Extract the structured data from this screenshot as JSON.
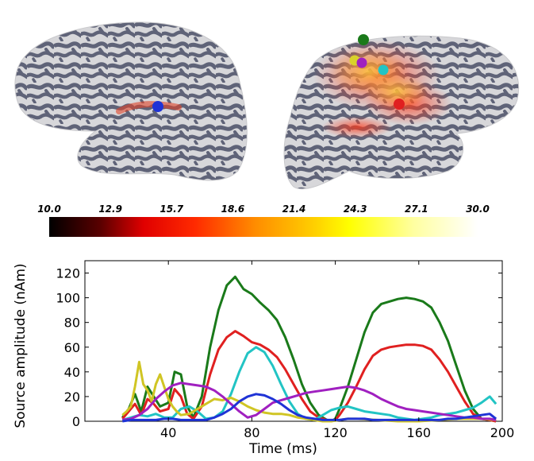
{
  "brain": {
    "views": [
      "left-hemisphere-lateral",
      "right-hemisphere-lateral"
    ],
    "dipoles": [
      {
        "name": "blue",
        "color": "#1f33d6",
        "hemisphere": "left"
      },
      {
        "name": "green",
        "color": "#1a7a1a",
        "hemisphere": "right"
      },
      {
        "name": "yellow",
        "color": "#d9d22a",
        "hemisphere": "right"
      },
      {
        "name": "magenta",
        "color": "#a020c0",
        "hemisphere": "right"
      },
      {
        "name": "cyan",
        "color": "#22c4c4",
        "hemisphere": "right"
      },
      {
        "name": "red",
        "color": "#e02020",
        "hemisphere": "right"
      }
    ]
  },
  "colorbar": {
    "ticks": [
      "10.0",
      "12.9",
      "15.7",
      "18.6",
      "21.4",
      "24.3",
      "27.1",
      "30.0"
    ],
    "colormap": "hot"
  },
  "chart_data": {
    "type": "line",
    "xlabel": "Time (ms)",
    "ylabel": "Source amplitude (nAm)",
    "xlim": [
      0,
      200
    ],
    "ylim": [
      0,
      130
    ],
    "xticks": [
      "40",
      "80",
      "120",
      "160",
      "200"
    ],
    "yticks": [
      "0",
      "20",
      "40",
      "60",
      "80",
      "100",
      "120"
    ],
    "grid": false,
    "legend": "none",
    "series": [
      {
        "color": "#1a7a1a",
        "x": [
          18,
          21,
          24,
          27,
          30,
          33,
          36,
          40,
          43,
          46,
          49,
          52,
          56,
          60,
          64,
          68,
          72,
          76,
          80,
          84,
          88,
          92,
          96,
          100,
          104,
          108,
          112,
          116,
          118,
          120,
          122,
          126,
          130,
          134,
          138,
          142,
          146,
          150,
          154,
          158,
          162,
          166,
          170,
          174,
          178,
          182,
          186,
          190,
          194,
          197
        ],
        "y": [
          3,
          10,
          22,
          8,
          28,
          20,
          12,
          15,
          40,
          38,
          12,
          3,
          20,
          60,
          90,
          110,
          117,
          107,
          103,
          96,
          90,
          82,
          68,
          50,
          30,
          15,
          5,
          1,
          0,
          2,
          10,
          28,
          50,
          72,
          88,
          95,
          97,
          99,
          100,
          99,
          97,
          92,
          80,
          65,
          45,
          25,
          10,
          2,
          1,
          0
        ]
      },
      {
        "color": "#e02020",
        "x": [
          18,
          21,
          24,
          27,
          30,
          33,
          36,
          40,
          43,
          46,
          49,
          52,
          56,
          60,
          64,
          68,
          72,
          76,
          80,
          84,
          88,
          92,
          96,
          100,
          104,
          108,
          112,
          116,
          118,
          120,
          122,
          126,
          130,
          134,
          138,
          142,
          146,
          150,
          154,
          158,
          162,
          166,
          170,
          174,
          178,
          182,
          186,
          190,
          194,
          197
        ],
        "y": [
          2,
          8,
          14,
          5,
          18,
          14,
          8,
          10,
          26,
          20,
          6,
          2,
          12,
          38,
          58,
          68,
          73,
          69,
          64,
          62,
          58,
          52,
          42,
          30,
          18,
          8,
          3,
          1,
          0,
          1,
          5,
          15,
          28,
          42,
          53,
          58,
          60,
          61,
          62,
          62,
          61,
          58,
          50,
          40,
          28,
          16,
          6,
          2,
          1,
          0
        ]
      },
      {
        "color": "#22c4c4",
        "x": [
          18,
          22,
          26,
          30,
          34,
          38,
          42,
          46,
          50,
          54,
          58,
          62,
          66,
          70,
          74,
          78,
          82,
          86,
          90,
          94,
          98,
          102,
          106,
          110,
          114,
          118,
          122,
          126,
          130,
          134,
          138,
          142,
          146,
          150,
          154,
          158,
          162,
          166,
          170,
          174,
          178,
          182,
          186,
          190,
          194,
          197
        ],
        "y": [
          1,
          3,
          5,
          4,
          6,
          3,
          3,
          10,
          12,
          8,
          2,
          3,
          8,
          22,
          40,
          55,
          60,
          56,
          45,
          30,
          16,
          6,
          2,
          1,
          5,
          9,
          11,
          12,
          10,
          8,
          7,
          6,
          5,
          3,
          2,
          1,
          2,
          3,
          5,
          6,
          7,
          9,
          11,
          15,
          20,
          14
        ]
      },
      {
        "color": "#d0c524",
        "x": [
          18,
          20,
          22,
          24,
          26,
          28,
          30,
          32,
          34,
          36,
          38,
          40,
          42,
          44,
          46,
          50,
          54,
          58,
          62,
          66,
          70,
          74,
          78,
          82,
          86,
          90,
          94,
          98,
          102,
          106,
          110,
          114,
          118,
          122,
          126,
          130,
          140,
          150,
          160,
          170,
          180,
          190,
          197
        ],
        "y": [
          5,
          8,
          12,
          28,
          48,
          30,
          25,
          16,
          30,
          38,
          28,
          18,
          12,
          8,
          5,
          6,
          10,
          14,
          18,
          17,
          19,
          16,
          12,
          9,
          7,
          6,
          6,
          5,
          3,
          2,
          1,
          0,
          0,
          1,
          2,
          2,
          1,
          0,
          0,
          1,
          2,
          2,
          1
        ]
      },
      {
        "color": "#a020c0",
        "x": [
          18,
          22,
          26,
          30,
          34,
          38,
          42,
          46,
          50,
          54,
          58,
          62,
          66,
          70,
          74,
          78,
          82,
          86,
          90,
          94,
          98,
          102,
          106,
          110,
          114,
          118,
          122,
          126,
          130,
          134,
          138,
          142,
          146,
          150,
          154,
          158,
          162,
          166,
          170,
          174,
          178,
          182,
          186,
          190,
          194,
          197
        ],
        "y": [
          1,
          2,
          5,
          10,
          18,
          24,
          29,
          31,
          30,
          29,
          28,
          25,
          20,
          14,
          8,
          3,
          5,
          10,
          15,
          17,
          19,
          21,
          23,
          24,
          25,
          26,
          27,
          28,
          27,
          25,
          22,
          18,
          15,
          12,
          10,
          9,
          8,
          7,
          6,
          5,
          4,
          3,
          3,
          2,
          2,
          1
        ]
      },
      {
        "color": "#1f33d6",
        "x": [
          18,
          22,
          26,
          30,
          34,
          38,
          42,
          46,
          50,
          54,
          58,
          62,
          66,
          70,
          74,
          78,
          82,
          86,
          90,
          94,
          98,
          102,
          106,
          110,
          114,
          118,
          122,
          126,
          130,
          134,
          138,
          142,
          146,
          150,
          154,
          158,
          162,
          166,
          170,
          174,
          178,
          182,
          186,
          190,
          194,
          197
        ],
        "y": [
          0,
          1,
          1,
          1,
          1,
          2,
          2,
          1,
          1,
          1,
          1,
          3,
          6,
          10,
          16,
          20,
          22,
          21,
          18,
          14,
          9,
          5,
          3,
          2,
          1,
          1,
          1,
          2,
          2,
          2,
          1,
          1,
          1,
          1,
          1,
          1,
          1,
          1,
          1,
          2,
          2,
          3,
          4,
          5,
          6,
          2
        ]
      }
    ]
  }
}
